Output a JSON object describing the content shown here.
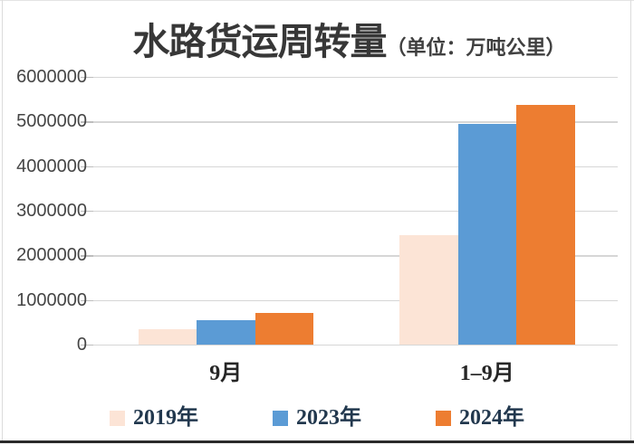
{
  "chart_data": {
    "type": "bar",
    "title": "水路货运周转量",
    "subtitle_unit": "（单位：万吨公里）",
    "categories": [
      "9月",
      "1–9月"
    ],
    "series": [
      {
        "name": "2019年",
        "color": "#fce4d6",
        "values": [
          340000,
          2450000
        ]
      },
      {
        "name": "2023年",
        "color": "#5b9bd5",
        "values": [
          550000,
          4950000
        ]
      },
      {
        "name": "2024年",
        "color": "#ed7d31",
        "values": [
          710000,
          5380000
        ]
      }
    ],
    "ylim": [
      0,
      6000000
    ],
    "ytick_step": 1000000,
    "ytick_labels": [
      "6000000",
      "5000000",
      "4000000",
      "3000000",
      "2000000",
      "1000000",
      "0"
    ],
    "grid": true,
    "legend_position": "bottom",
    "colors": {
      "grid": "#d6d6d6",
      "axis_text": "#454545",
      "title_text": "#373737",
      "legend_text": "#22384e"
    }
  }
}
